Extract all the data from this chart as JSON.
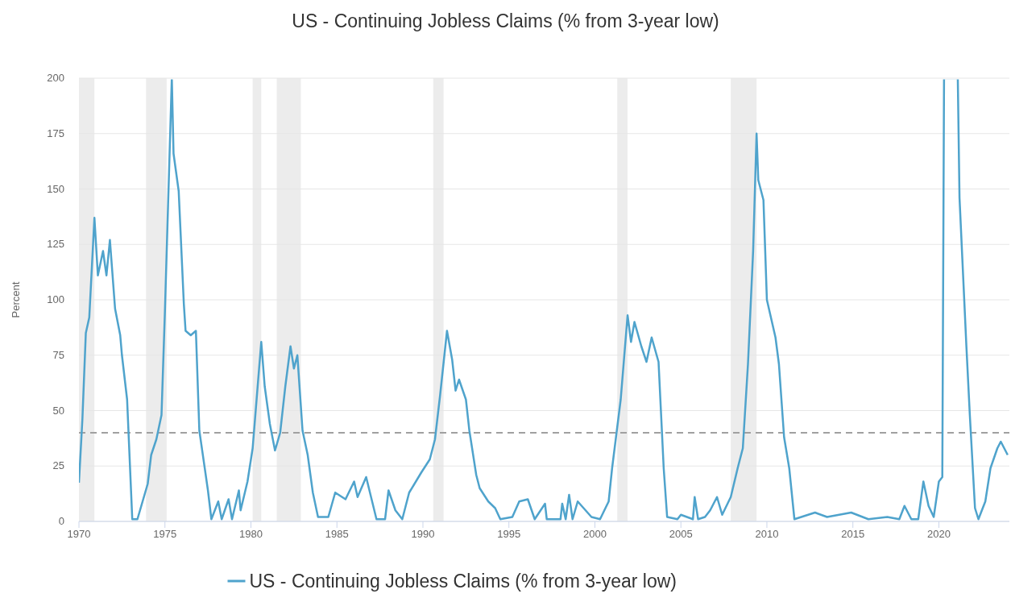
{
  "chart_data": {
    "type": "line",
    "title": "US - Continuing Jobless Claims (% from 3-year low)",
    "ylabel": "Percent",
    "xlim": [
      1970,
      2024.1
    ],
    "xticks": [
      1970,
      1975,
      1980,
      1985,
      1990,
      1995,
      2000,
      2005,
      2010,
      2015,
      2020
    ],
    "ylim": [
      0,
      200
    ],
    "yticks": [
      0,
      25,
      50,
      75,
      100,
      125,
      150,
      175,
      200
    ],
    "grid": "y",
    "legend": "bottom",
    "line_style": "solid",
    "marker": "none",
    "ref_lines": [
      {
        "axis": "y",
        "value": 40,
        "color": "#a0a0a0",
        "line_style": "dashed"
      }
    ],
    "bands": [
      {
        "axis": "x",
        "from": 1970,
        "to": 1970.9,
        "color": "#ececec"
      },
      {
        "axis": "x",
        "from": 1973.9,
        "to": 1975.1,
        "color": "#ececec"
      },
      {
        "axis": "x",
        "from": 1980.1,
        "to": 1980.6,
        "color": "#ececec"
      },
      {
        "axis": "x",
        "from": 1981.5,
        "to": 1982.9,
        "color": "#ececec"
      },
      {
        "axis": "x",
        "from": 1990.6,
        "to": 1991.2,
        "color": "#ececec"
      },
      {
        "axis": "x",
        "from": 2001.3,
        "to": 2001.9,
        "color": "#ececec"
      },
      {
        "axis": "x",
        "from": 2007.9,
        "to": 2009.4,
        "color": "#ececec"
      }
    ],
    "series": [
      {
        "name": "US - Continuing Jobless Claims (% from 3-year low)",
        "color": "#4fa3cc",
        "x": [
          1970.0,
          1970.2,
          1970.4,
          1970.6,
          1970.9,
          1971.1,
          1971.4,
          1971.6,
          1971.8,
          1972.1,
          1972.4,
          1972.5,
          1972.8,
          1973.1,
          1973.4,
          1973.7,
          1974.0,
          1974.2,
          1974.5,
          1974.8,
          1975.0,
          1975.4,
          1975.5,
          1975.8,
          1976.1,
          1976.2,
          1976.5,
          1976.8,
          1977.0,
          1977.5,
          1977.7,
          1978.1,
          1978.3,
          1978.7,
          1978.9,
          1979.3,
          1979.4,
          1979.8,
          1980.1,
          1980.6,
          1980.8,
          1981.1,
          1981.4,
          1981.7,
          1982.0,
          1982.3,
          1982.5,
          1982.7,
          1983.0,
          1983.3,
          1983.6,
          1983.9,
          1984.5,
          1984.9,
          1985.5,
          1986.0,
          1986.2,
          1986.7,
          1987.3,
          1987.8,
          1988.0,
          1988.4,
          1988.8,
          1989.2,
          1989.9,
          1990.4,
          1990.7,
          1991.0,
          1991.4,
          1991.7,
          1991.9,
          1992.1,
          1992.5,
          1992.7,
          1993.1,
          1993.3,
          1993.8,
          1994.2,
          1994.5,
          1995.2,
          1995.6,
          1996.1,
          1996.5,
          1997.1,
          1997.2,
          1998.0,
          1998.1,
          1998.3,
          1998.5,
          1998.7,
          1999.0,
          1999.8,
          2000.3,
          2000.8,
          2001.0,
          2001.5,
          2001.9,
          2002.1,
          2002.3,
          2002.7,
          2003.0,
          2003.3,
          2003.7,
          2004.0,
          2004.2,
          2004.8,
          2005.0,
          2005.7,
          2005.8,
          2006.0,
          2006.4,
          2006.7,
          2007.1,
          2007.4,
          2007.9,
          2008.3,
          2008.6,
          2008.9,
          2009.2,
          2009.4,
          2009.5,
          2009.8,
          2010.0,
          2010.5,
          2010.7,
          2011.0,
          2011.3,
          2011.6,
          2012.8,
          2013.5,
          2014.2,
          2014.9,
          2015.9,
          2017.0,
          2017.7,
          2018.0,
          2018.4,
          2018.8,
          2019.1,
          2019.4,
          2019.7,
          2020.0,
          2020.2,
          2020.3,
          2021.1,
          2021.2,
          2021.6,
          2021.8,
          2022.1,
          2022.3,
          2022.7,
          2023.0,
          2023.4,
          2023.6,
          2024.0
        ],
        "values": [
          17.5,
          46,
          85,
          92,
          137,
          111,
          122,
          111,
          127,
          96,
          84,
          75,
          55,
          1,
          1,
          9,
          17,
          30,
          37,
          48,
          95,
          200,
          166,
          149,
          98,
          86,
          84,
          86,
          41,
          14,
          1,
          9,
          1,
          10,
          1,
          14,
          5,
          18,
          33,
          81,
          61,
          44,
          32,
          40,
          61,
          79,
          69,
          75,
          41,
          30,
          13,
          2,
          2,
          13,
          10,
          18,
          11,
          20,
          1,
          1,
          14,
          5,
          1,
          13,
          22,
          28,
          37,
          57,
          86,
          73,
          59,
          64,
          55,
          41,
          21,
          15,
          9,
          6,
          1,
          2,
          9,
          10,
          1,
          8,
          1,
          1,
          8,
          1,
          12,
          1,
          9,
          2,
          1,
          9,
          24,
          55,
          93,
          81,
          90,
          79,
          72,
          83,
          72,
          24,
          2,
          1,
          3,
          1,
          11,
          1,
          2,
          5,
          11,
          3,
          11,
          24,
          33,
          71,
          122,
          175,
          154,
          145,
          100,
          83,
          71,
          38,
          24,
          1,
          4,
          2,
          3,
          4,
          1,
          2,
          1,
          7,
          1,
          1,
          18,
          7,
          2,
          18,
          20,
          200,
          200,
          146,
          79,
          48,
          6,
          1,
          9,
          24,
          33,
          36,
          30
        ]
      }
    ]
  }
}
